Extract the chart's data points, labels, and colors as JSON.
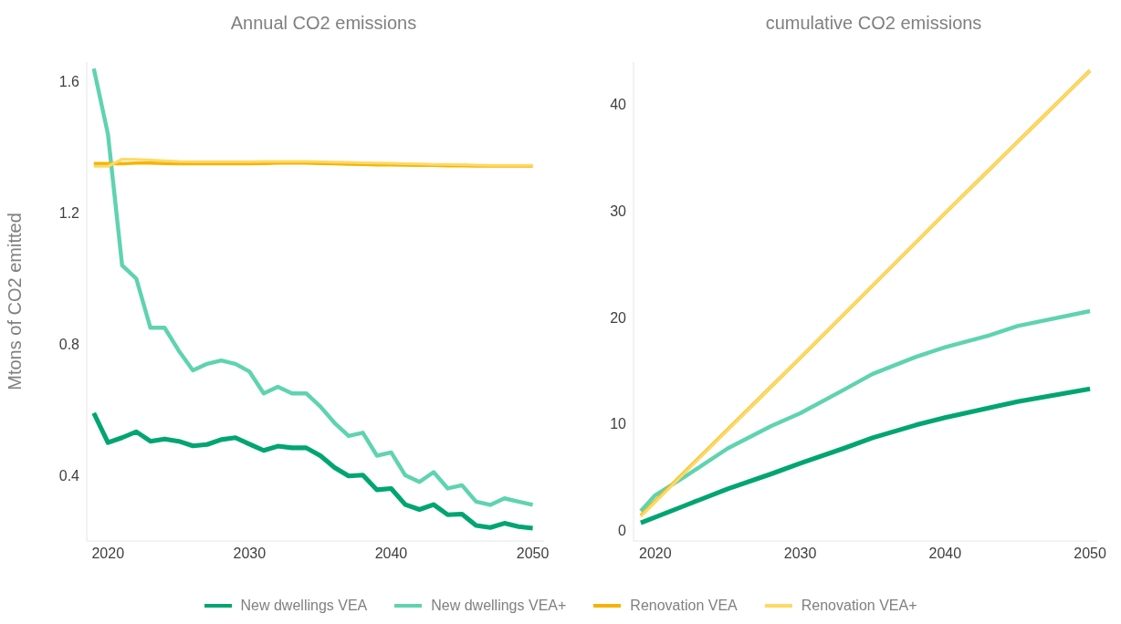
{
  "chart_data": [
    {
      "type": "line",
      "title": "Annual CO2 emissions",
      "ylabel": "Mtons of CO2 emitted",
      "x": [
        2019,
        2020,
        2021,
        2022,
        2023,
        2024,
        2025,
        2026,
        2027,
        2028,
        2029,
        2030,
        2031,
        2032,
        2033,
        2034,
        2035,
        2036,
        2037,
        2038,
        2039,
        2040,
        2041,
        2042,
        2043,
        2044,
        2045,
        2046,
        2047,
        2048,
        2049,
        2050
      ],
      "xlim": [
        2018.5,
        2050.8
      ],
      "xticks": [
        2020,
        2030,
        2040,
        2050
      ],
      "ylim": [
        0.2,
        1.66
      ],
      "yticks": [
        0.4,
        0.8,
        1.2,
        1.6
      ],
      "grid": false,
      "legend": "bottom",
      "series": [
        {
          "name": "New dwellings VEA",
          "color": "#00a572",
          "values": [
            0.59,
            0.5,
            0.515,
            0.533,
            0.504,
            0.511,
            0.504,
            0.49,
            0.494,
            0.509,
            0.515,
            0.495,
            0.476,
            0.489,
            0.484,
            0.484,
            0.46,
            0.424,
            0.398,
            0.401,
            0.356,
            0.36,
            0.311,
            0.296,
            0.311,
            0.28,
            0.282,
            0.247,
            0.241,
            0.254,
            0.244,
            0.239
          ]
        },
        {
          "name": "New dwellings VEA+",
          "color": "#5fd3b0",
          "values": [
            1.64,
            1.44,
            1.04,
            1.0,
            0.85,
            0.85,
            0.78,
            0.72,
            0.74,
            0.75,
            0.74,
            0.716,
            0.65,
            0.67,
            0.65,
            0.65,
            0.61,
            0.56,
            0.52,
            0.53,
            0.46,
            0.47,
            0.4,
            0.38,
            0.41,
            0.36,
            0.37,
            0.32,
            0.31,
            0.33,
            0.32,
            0.31
          ]
        },
        {
          "name": "Renovation VEA",
          "color": "#f5b400",
          "values": [
            1.35,
            1.35,
            1.35,
            1.352,
            1.352,
            1.351,
            1.35,
            1.35,
            1.35,
            1.35,
            1.35,
            1.35,
            1.351,
            1.352,
            1.352,
            1.352,
            1.351,
            1.35,
            1.349,
            1.348,
            1.347,
            1.347,
            1.346,
            1.345,
            1.345,
            1.344,
            1.344,
            1.343,
            1.343,
            1.343,
            1.343,
            1.343
          ]
        },
        {
          "name": "Renovation VEA+",
          "color": "#ffd966",
          "values": [
            1.342,
            1.342,
            1.364,
            1.363,
            1.361,
            1.359,
            1.357,
            1.356,
            1.356,
            1.356,
            1.356,
            1.356,
            1.357,
            1.357,
            1.357,
            1.357,
            1.356,
            1.355,
            1.354,
            1.353,
            1.352,
            1.351,
            1.35,
            1.349,
            1.348,
            1.348,
            1.347,
            1.346,
            1.345,
            1.345,
            1.345,
            1.345
          ]
        }
      ]
    },
    {
      "type": "line",
      "title": "cumulative CO2 emissions",
      "xlim": [
        2018.5,
        2050.5
      ],
      "xticks": [
        2020,
        2030,
        2040,
        2050
      ],
      "ylim": [
        -1,
        44
      ],
      "yticks": [
        0,
        10,
        20,
        30,
        40
      ],
      "grid": false,
      "legend": "bottom",
      "series": [
        {
          "name": "New dwellings VEA",
          "color": "#00a572",
          "x": [
            2019,
            2022,
            2025,
            2028,
            2030,
            2033,
            2035,
            2038,
            2040,
            2043,
            2045,
            2050
          ],
          "values": [
            0.7,
            2.3,
            3.9,
            5.3,
            6.3,
            7.7,
            8.7,
            9.9,
            10.6,
            11.5,
            12.1,
            13.3
          ]
        },
        {
          "name": "New dwellings VEA+",
          "color": "#5fd3b0",
          "x": [
            2019,
            2020,
            2022,
            2025,
            2028,
            2030,
            2033,
            2035,
            2038,
            2040,
            2043,
            2045,
            2050
          ],
          "values": [
            1.8,
            3.3,
            5.0,
            7.7,
            9.8,
            11.0,
            13.2,
            14.7,
            16.3,
            17.2,
            18.3,
            19.2,
            20.6
          ]
        },
        {
          "name": "Renovation VEA",
          "color": "#f5b400",
          "x": [
            2019,
            2030,
            2040,
            2050
          ],
          "values": [
            1.4,
            16.2,
            29.8,
            43.2
          ]
        },
        {
          "name": "Renovation VEA+",
          "color": "#ffd966",
          "x": [
            2019,
            2030,
            2040,
            2050
          ],
          "values": [
            1.3,
            16.2,
            29.8,
            43.2
          ]
        }
      ]
    }
  ]
}
